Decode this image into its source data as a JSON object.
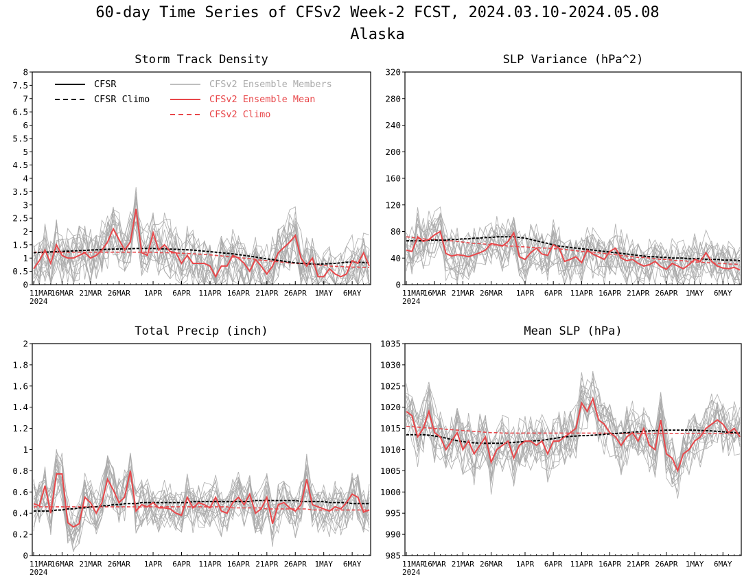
{
  "figure": {
    "title": "60-day Time Series of CFSv2 Week-2 FCST, 2024.03.10-2024.05.08",
    "subtitle": "Alaska"
  },
  "colors": {
    "cfsr": "#000000",
    "members": "#aaaaaa",
    "ens_mean": "#e8474a",
    "cfsv2_climo": "#e8474a"
  },
  "legend": {
    "cfsr": "CFSR",
    "cfsr_climo": "CFSR Climo",
    "members": "CFSv2 Ensemble Members",
    "ens_mean": "CFSv2 Ensemble Mean",
    "cfsv2_climo": "CFSv2 Climo"
  },
  "chart_data": [
    {
      "id": "storm",
      "type": "line",
      "title": "Storm Track Density",
      "xticks": [
        "11MAR",
        "16MAR",
        "21MAR",
        "26MAR",
        "1APR",
        "6APR",
        "11APR",
        "16APR",
        "21APR",
        "26APR",
        "1MAY",
        "6MAY"
      ],
      "xyear": "2024",
      "ylim": [
        0,
        8
      ],
      "yticks": [
        0,
        0.5,
        1,
        1.5,
        2,
        2.5,
        3,
        3.5,
        4,
        4.5,
        5,
        5.5,
        6,
        6.5,
        7,
        7.5,
        8
      ],
      "ens_mean": [
        0.6,
        0.9,
        1.3,
        0.8,
        1.5,
        1.1,
        1.0,
        1.0,
        1.1,
        1.2,
        1.0,
        1.1,
        1.3,
        1.6,
        2.1,
        1.7,
        1.3,
        1.6,
        2.85,
        1.2,
        1.1,
        1.95,
        1.3,
        1.5,
        1.25,
        1.2,
        0.8,
        1.1,
        0.8,
        0.8,
        0.8,
        0.7,
        0.3,
        0.7,
        0.7,
        1.1,
        1.0,
        0.8,
        0.5,
        0.95,
        0.7,
        0.4,
        0.7,
        1.2,
        1.4,
        1.6,
        1.85,
        1.0,
        0.7,
        1.0,
        0.3,
        0.3,
        0.6,
        0.4,
        0.3,
        0.4,
        0.9,
        0.8,
        1.2,
        0.7
      ],
      "cfsv2_climo": [
        1.22,
        1.22,
        1.22,
        1.22,
        1.22,
        1.22,
        1.22,
        1.22,
        1.22,
        1.22,
        1.22,
        1.22,
        1.22,
        1.22,
        1.22,
        1.22,
        1.22,
        1.22,
        1.22,
        1.22,
        1.22,
        1.22,
        1.2,
        1.2,
        1.2,
        1.19,
        1.18,
        1.17,
        1.16,
        1.15,
        1.14,
        1.12,
        1.1,
        1.08,
        1.06,
        1.04,
        1.02,
        1.0,
        0.98,
        0.95,
        0.92,
        0.9,
        0.88,
        0.86,
        0.84,
        0.82,
        0.8,
        0.79,
        0.78,
        0.76,
        0.74,
        0.72,
        0.7,
        0.69,
        0.68,
        0.67,
        0.66,
        0.66,
        0.65,
        0.64
      ],
      "cfsr_climo": [
        1.2,
        1.21,
        1.22,
        1.23,
        1.24,
        1.25,
        1.26,
        1.27,
        1.28,
        1.29,
        1.3,
        1.31,
        1.32,
        1.33,
        1.34,
        1.34,
        1.35,
        1.35,
        1.36,
        1.36,
        1.36,
        1.36,
        1.35,
        1.35,
        1.34,
        1.33,
        1.32,
        1.31,
        1.3,
        1.28,
        1.26,
        1.24,
        1.22,
        1.2,
        1.18,
        1.16,
        1.13,
        1.1,
        1.07,
        1.04,
        1.0,
        0.97,
        0.94,
        0.91,
        0.88,
        0.85,
        0.82,
        0.8,
        0.79,
        0.78,
        0.77,
        0.78,
        0.79,
        0.8,
        0.82,
        0.84,
        0.85,
        0.84,
        0.83,
        0.82
      ],
      "member_spread": 1.0,
      "member_base": 0.25
    },
    {
      "id": "slpvar",
      "type": "line",
      "title": "SLP Variance (hPa^2)",
      "xticks": [
        "11MAR",
        "16MAR",
        "21MAR",
        "26MAR",
        "1APR",
        "6APR",
        "11APR",
        "16APR",
        "21APR",
        "26APR",
        "1MAY",
        "6MAY"
      ],
      "xyear": "2024",
      "ylim": [
        0,
        320
      ],
      "yticks": [
        0,
        40,
        80,
        120,
        160,
        200,
        240,
        280,
        320
      ],
      "ens_mean": [
        52,
        50,
        72,
        65,
        68,
        75,
        80,
        47,
        43,
        45,
        44,
        42,
        45,
        48,
        52,
        62,
        60,
        58,
        65,
        78,
        42,
        38,
        48,
        55,
        46,
        44,
        60,
        55,
        35,
        38,
        42,
        33,
        52,
        46,
        42,
        38,
        50,
        55,
        40,
        36,
        38,
        32,
        28,
        30,
        35,
        27,
        23,
        32,
        28,
        24,
        30,
        38,
        35,
        48,
        35,
        28,
        25,
        24,
        26,
        22
      ],
      "cfsv2_climo": [
        72,
        71,
        70,
        69,
        68,
        68,
        67,
        66,
        66,
        65,
        64,
        63,
        62,
        62,
        61,
        60,
        60,
        59,
        58,
        58,
        57,
        57,
        56,
        56,
        55,
        55,
        54,
        54,
        53,
        52,
        51,
        50,
        50,
        49,
        48,
        47,
        46,
        45,
        44,
        43,
        42,
        41,
        41,
        40,
        39,
        38,
        38,
        37,
        36,
        36,
        35,
        34,
        34,
        33,
        33,
        32,
        32,
        31,
        31,
        30
      ],
      "cfsr_climo": [
        66,
        66,
        66,
        66,
        67,
        67,
        67,
        67,
        68,
        68,
        69,
        69,
        70,
        70,
        71,
        71,
        72,
        72,
        72,
        72,
        71,
        70,
        68,
        66,
        64,
        62,
        60,
        58,
        57,
        56,
        55,
        54,
        53,
        52,
        51,
        50,
        49,
        48,
        47,
        46,
        45,
        44,
        43,
        42,
        42,
        41,
        41,
        40,
        40,
        40,
        39,
        39,
        39,
        38,
        38,
        38,
        37,
        37,
        37,
        36
      ],
      "member_spread": 34,
      "member_base": 12
    },
    {
      "id": "precip",
      "type": "line",
      "title": "Total Precip (inch)",
      "xticks": [
        "11MAR",
        "16MAR",
        "21MAR",
        "26MAR",
        "1APR",
        "6APR",
        "11APR",
        "16APR",
        "21APR",
        "26APR",
        "1MAY",
        "6MAY"
      ],
      "xyear": "2024",
      "ylim": [
        0,
        2
      ],
      "yticks": [
        0,
        0.2,
        0.4,
        0.6,
        0.8,
        1,
        1.2,
        1.4,
        1.6,
        1.8,
        2
      ],
      "ens_mean": [
        0.49,
        0.47,
        0.66,
        0.4,
        0.77,
        0.77,
        0.31,
        0.27,
        0.3,
        0.55,
        0.5,
        0.4,
        0.5,
        0.72,
        0.62,
        0.5,
        0.55,
        0.8,
        0.42,
        0.48,
        0.46,
        0.5,
        0.45,
        0.45,
        0.44,
        0.4,
        0.38,
        0.55,
        0.45,
        0.5,
        0.48,
        0.45,
        0.55,
        0.42,
        0.4,
        0.5,
        0.55,
        0.48,
        0.58,
        0.4,
        0.44,
        0.55,
        0.3,
        0.48,
        0.5,
        0.45,
        0.42,
        0.48,
        0.72,
        0.48,
        0.46,
        0.44,
        0.42,
        0.46,
        0.44,
        0.5,
        0.58,
        0.55,
        0.41,
        0.43
      ],
      "cfsv2_climo": [
        0.46,
        0.46,
        0.46,
        0.46,
        0.46,
        0.46,
        0.46,
        0.46,
        0.46,
        0.46,
        0.46,
        0.46,
        0.46,
        0.46,
        0.46,
        0.46,
        0.46,
        0.46,
        0.46,
        0.46,
        0.46,
        0.46,
        0.46,
        0.46,
        0.46,
        0.46,
        0.46,
        0.46,
        0.46,
        0.46,
        0.46,
        0.46,
        0.46,
        0.46,
        0.46,
        0.45,
        0.45,
        0.45,
        0.45,
        0.45,
        0.45,
        0.44,
        0.44,
        0.44,
        0.44,
        0.44,
        0.44,
        0.44,
        0.44,
        0.43,
        0.43,
        0.43,
        0.43,
        0.43,
        0.43,
        0.43,
        0.43,
        0.43,
        0.43,
        0.43
      ],
      "cfsr_climo": [
        0.42,
        0.42,
        0.42,
        0.42,
        0.43,
        0.43,
        0.44,
        0.44,
        0.45,
        0.45,
        0.46,
        0.46,
        0.47,
        0.47,
        0.48,
        0.48,
        0.49,
        0.49,
        0.49,
        0.5,
        0.5,
        0.5,
        0.5,
        0.5,
        0.5,
        0.5,
        0.5,
        0.5,
        0.51,
        0.51,
        0.51,
        0.51,
        0.51,
        0.51,
        0.51,
        0.51,
        0.51,
        0.51,
        0.51,
        0.52,
        0.52,
        0.52,
        0.52,
        0.52,
        0.52,
        0.52,
        0.52,
        0.51,
        0.51,
        0.51,
        0.51,
        0.51,
        0.5,
        0.5,
        0.5,
        0.5,
        0.49,
        0.49,
        0.49,
        0.49
      ],
      "member_spread": 0.22,
      "member_base": 0.05
    },
    {
      "id": "mslp",
      "type": "line",
      "title": "Mean SLP (hPa)",
      "xticks": [
        "11MAR",
        "16MAR",
        "21MAR",
        "26MAR",
        "1APR",
        "6APR",
        "11APR",
        "16APR",
        "21APR",
        "26APR",
        "1MAY",
        "6MAY"
      ],
      "xyear": "2024",
      "ylim": [
        985,
        1035
      ],
      "yticks": [
        985,
        990,
        995,
        1000,
        1005,
        1010,
        1015,
        1020,
        1025,
        1030,
        1035
      ],
      "ens_mean": [
        1019,
        1018,
        1013,
        1015,
        1019,
        1014,
        1013,
        1010,
        1012,
        1014,
        1010,
        1012,
        1009,
        1011,
        1013,
        1007,
        1010,
        1011,
        1012,
        1008,
        1011,
        1012,
        1012,
        1011,
        1012,
        1009,
        1012,
        1012,
        1013,
        1014,
        1015,
        1021,
        1019,
        1022,
        1017,
        1016,
        1014,
        1013,
        1011,
        1013,
        1014,
        1012,
        1015,
        1011,
        1010,
        1017,
        1009,
        1008,
        1005,
        1009,
        1010,
        1012,
        1013,
        1015,
        1016,
        1017,
        1016,
        1014,
        1015,
        1013
      ],
      "cfsv2_climo": [
        1015.5,
        1015.4,
        1015.3,
        1015.2,
        1015.1,
        1015,
        1014.9,
        1014.8,
        1014.7,
        1014.6,
        1014.5,
        1014.4,
        1014.3,
        1014.2,
        1014.1,
        1014,
        1014,
        1013.9,
        1013.9,
        1013.9,
        1013.9,
        1013.9,
        1013.9,
        1013.9,
        1013.9,
        1013.9,
        1013.9,
        1013.9,
        1013.9,
        1013.9,
        1013.9,
        1013.9,
        1013.9,
        1013.9,
        1013.9,
        1013.9,
        1013.8,
        1013.8,
        1013.8,
        1013.8,
        1013.8,
        1013.8,
        1013.8,
        1013.8,
        1013.8,
        1013.8,
        1013.8,
        1013.8,
        1013.8,
        1013.8,
        1013.8,
        1013.8,
        1013.8,
        1013.8,
        1013.8,
        1013.8,
        1013.8,
        1013.8,
        1013.8,
        1013.8
      ],
      "cfsr_climo": [
        1013.5,
        1013.5,
        1013.5,
        1013.5,
        1013.4,
        1013.2,
        1013,
        1012.7,
        1012.4,
        1012.1,
        1011.9,
        1011.7,
        1011.6,
        1011.5,
        1011.5,
        1011.5,
        1011.5,
        1011.5,
        1011.6,
        1011.7,
        1011.8,
        1011.9,
        1012,
        1012.1,
        1012.2,
        1012.4,
        1012.6,
        1012.8,
        1013,
        1013.1,
        1013.2,
        1013.3,
        1013.3,
        1013.4,
        1013.5,
        1013.6,
        1013.7,
        1013.8,
        1013.9,
        1014,
        1014.1,
        1014.2,
        1014.3,
        1014.4,
        1014.5,
        1014.5,
        1014.6,
        1014.6,
        1014.6,
        1014.6,
        1014.6,
        1014.6,
        1014.5,
        1014.5,
        1014.4,
        1014.3,
        1014.2,
        1014.1,
        1014,
        1013.9
      ],
      "member_spread": 6,
      "member_base": 2
    }
  ]
}
